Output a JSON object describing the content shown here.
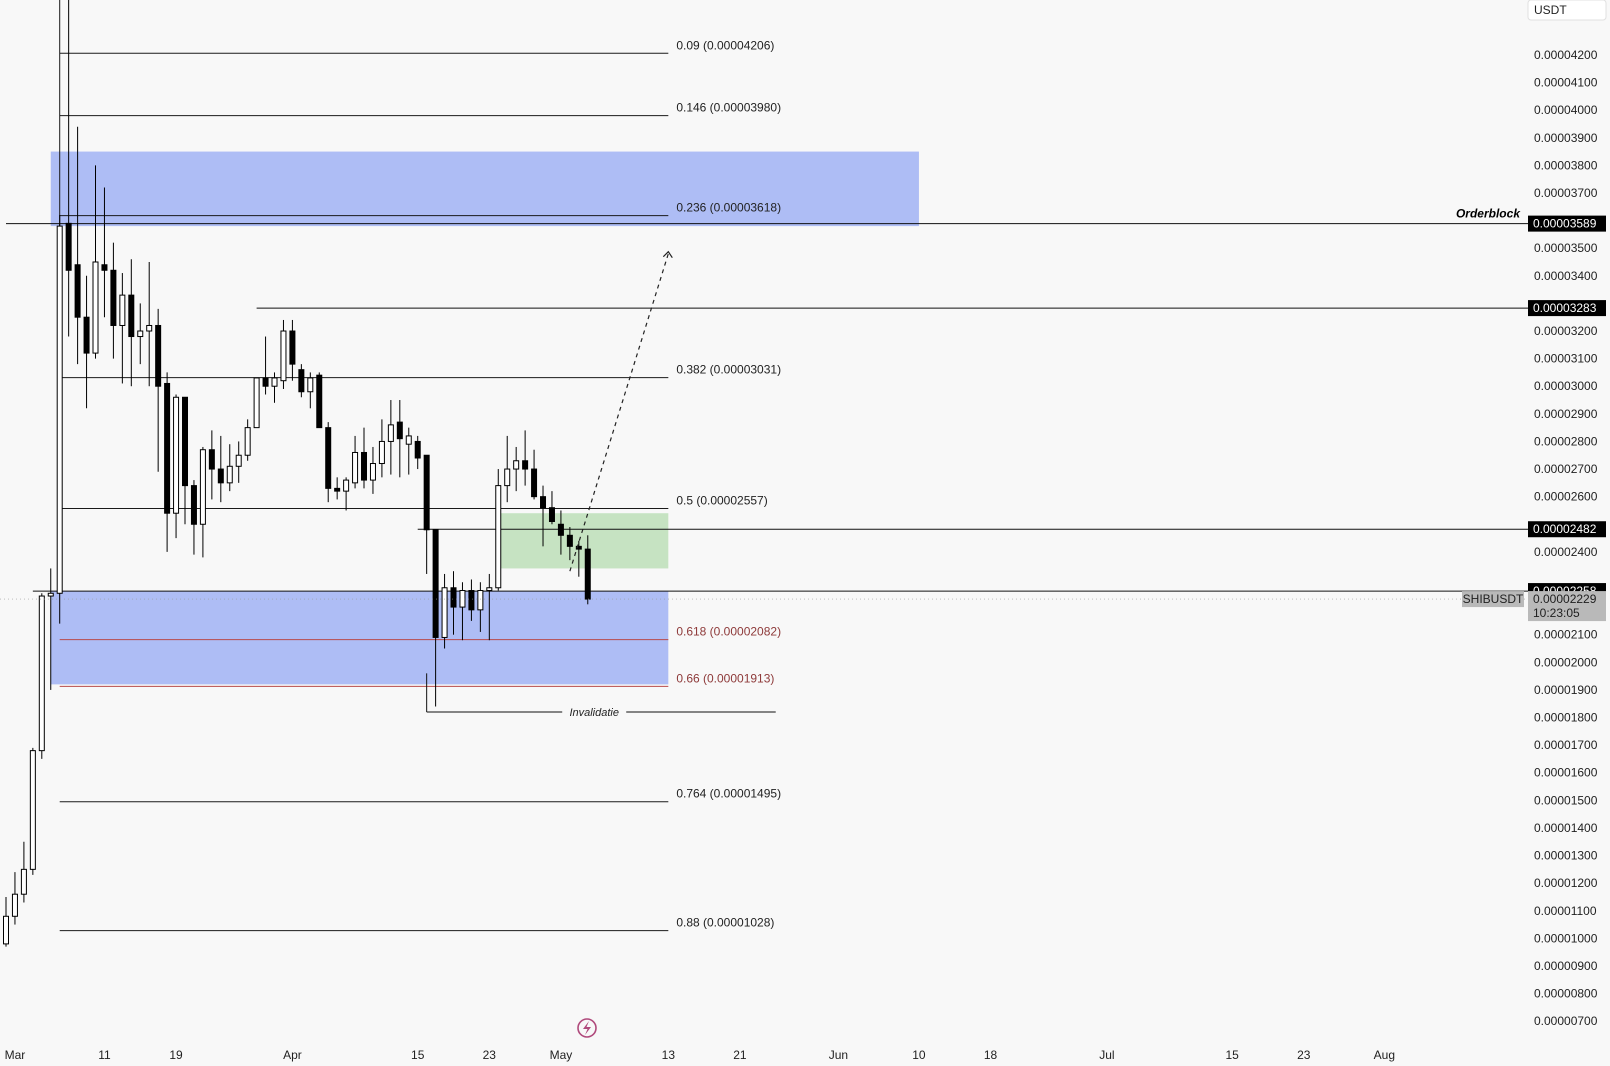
{
  "colors": {
    "background": "#f8f8f8",
    "blue_zone": "#aebdf5",
    "green_zone": "#c6e3c2",
    "candle_up": "#ffffff",
    "candle_down": "#000000",
    "fib_line": "#1a1a1a",
    "fib_red": "#b84a4a",
    "label_dark": "#000000",
    "label_grey": "#b9b9b9",
    "icon": "#b04a7c"
  },
  "chart_data": {
    "type": "candlestick",
    "symbol": "SHIBUSDT",
    "currency": "USDT",
    "y_range": [
      6.5e-06,
      4.37e-05
    ],
    "x_range": [
      "2024-02-29",
      "2024-08-08"
    ],
    "y_ticks": [
      "0.00004200",
      "0.00004100",
      "0.00004000",
      "0.00003900",
      "0.00003800",
      "0.00003700",
      "0.00003500",
      "0.00003400",
      "0.00003200",
      "0.00003100",
      "0.00003000",
      "0.00002900",
      "0.00002800",
      "0.00002700",
      "0.00002600",
      "0.00002400",
      "0.00002100",
      "0.00002000",
      "0.00001900",
      "0.00001800",
      "0.00001700",
      "0.00001600",
      "0.00001500",
      "0.00001400",
      "0.00001300",
      "0.00001200",
      "0.00001100",
      "0.00001000",
      "0.00000900",
      "0.00000800",
      "0.00000700"
    ],
    "x_ticks": [
      {
        "date": "2024-03-01",
        "label": "Mar"
      },
      {
        "date": "2024-03-11",
        "label": "11"
      },
      {
        "date": "2024-03-19",
        "label": "19"
      },
      {
        "date": "2024-04-01",
        "label": "Apr"
      },
      {
        "date": "2024-04-15",
        "label": "15"
      },
      {
        "date": "2024-04-23",
        "label": "23"
      },
      {
        "date": "2024-05-01",
        "label": "May"
      },
      {
        "date": "2024-05-13",
        "label": "13"
      },
      {
        "date": "2024-05-21",
        "label": "21"
      },
      {
        "date": "2024-06-01",
        "label": "Jun"
      },
      {
        "date": "2024-06-10",
        "label": "10"
      },
      {
        "date": "2024-06-18",
        "label": "18"
      },
      {
        "date": "2024-07-01",
        "label": "Jul"
      },
      {
        "date": "2024-07-15",
        "label": "15"
      },
      {
        "date": "2024-07-23",
        "label": "23"
      },
      {
        "date": "2024-08-01",
        "label": "Aug"
      }
    ],
    "candles": [
      {
        "date": "2024-02-29",
        "o": 9.8e-06,
        "h": 1.15e-05,
        "l": 9.7e-06,
        "c": 1.08e-05
      },
      {
        "date": "2024-03-01",
        "o": 1.08e-05,
        "h": 1.24e-05,
        "l": 1.05e-05,
        "c": 1.16e-05
      },
      {
        "date": "2024-03-02",
        "o": 1.16e-05,
        "h": 1.35e-05,
        "l": 1.13e-05,
        "c": 1.25e-05
      },
      {
        "date": "2024-03-03",
        "o": 1.25e-05,
        "h": 1.69e-05,
        "l": 1.23e-05,
        "c": 1.68e-05
      },
      {
        "date": "2024-03-04",
        "o": 1.68e-05,
        "h": 2.25e-05,
        "l": 1.65e-05,
        "c": 2.24e-05
      },
      {
        "date": "2024-03-05",
        "o": 2.24e-05,
        "h": 2.34e-05,
        "l": 1.9e-05,
        "c": 2.25e-05
      },
      {
        "date": "2024-03-06",
        "o": 2.25e-05,
        "h": 3.62e-05,
        "l": 2.14e-05,
        "c": 3.58e-05
      },
      {
        "date": "2024-03-07",
        "o": 3.59e-05,
        "h": 4.52e-05,
        "l": 3.18e-05,
        "c": 3.42e-05
      },
      {
        "date": "2024-03-08",
        "o": 3.44e-05,
        "h": 3.94e-05,
        "l": 3.08e-05,
        "c": 3.25e-05
      },
      {
        "date": "2024-03-09",
        "o": 3.25e-05,
        "h": 3.4e-05,
        "l": 2.92e-05,
        "c": 3.12e-05
      },
      {
        "date": "2024-03-10",
        "o": 3.12e-05,
        "h": 3.8e-05,
        "l": 3.1e-05,
        "c": 3.45e-05
      },
      {
        "date": "2024-03-11",
        "o": 3.44e-05,
        "h": 3.72e-05,
        "l": 3.25e-05,
        "c": 3.42e-05
      },
      {
        "date": "2024-03-12",
        "o": 3.42e-05,
        "h": 3.52e-05,
        "l": 3.1e-05,
        "c": 3.22e-05
      },
      {
        "date": "2024-03-13",
        "o": 3.22e-05,
        "h": 3.41e-05,
        "l": 3.01e-05,
        "c": 3.33e-05
      },
      {
        "date": "2024-03-14",
        "o": 3.33e-05,
        "h": 3.46e-05,
        "l": 3e-05,
        "c": 3.18e-05
      },
      {
        "date": "2024-03-15",
        "o": 3.18e-05,
        "h": 3.3e-05,
        "l": 3.08e-05,
        "c": 3.2e-05
      },
      {
        "date": "2024-03-16",
        "o": 3.2e-05,
        "h": 3.45e-05,
        "l": 3e-05,
        "c": 3.22e-05
      },
      {
        "date": "2024-03-17",
        "o": 3.22e-05,
        "h": 3.28e-05,
        "l": 2.69e-05,
        "c": 3e-05
      },
      {
        "date": "2024-03-18",
        "o": 3.01e-05,
        "h": 3.05e-05,
        "l": 2.4e-05,
        "c": 2.54e-05
      },
      {
        "date": "2024-03-19",
        "o": 2.54e-05,
        "h": 2.97e-05,
        "l": 2.45e-05,
        "c": 2.96e-05
      },
      {
        "date": "2024-03-20",
        "o": 2.96e-05,
        "h": 2.96e-05,
        "l": 2.5e-05,
        "c": 2.64e-05
      },
      {
        "date": "2024-03-21",
        "o": 2.64e-05,
        "h": 2.66e-05,
        "l": 2.39e-05,
        "c": 2.5e-05
      },
      {
        "date": "2024-03-22",
        "o": 2.5e-05,
        "h": 2.78e-05,
        "l": 2.38e-05,
        "c": 2.77e-05
      },
      {
        "date": "2024-03-23",
        "o": 2.77e-05,
        "h": 2.84e-05,
        "l": 2.59e-05,
        "c": 2.7e-05
      },
      {
        "date": "2024-03-24",
        "o": 2.7e-05,
        "h": 2.82e-05,
        "l": 2.58e-05,
        "c": 2.65e-05
      },
      {
        "date": "2024-03-25",
        "o": 2.65e-05,
        "h": 2.79e-05,
        "l": 2.62e-05,
        "c": 2.71e-05
      },
      {
        "date": "2024-03-26",
        "o": 2.71e-05,
        "h": 2.8e-05,
        "l": 2.65e-05,
        "c": 2.75e-05
      },
      {
        "date": "2024-03-27",
        "o": 2.75e-05,
        "h": 2.88e-05,
        "l": 2.73e-05,
        "c": 2.85e-05
      },
      {
        "date": "2024-03-28",
        "o": 2.85e-05,
        "h": 3.03e-05,
        "l": 2.85e-05,
        "c": 3.03e-05
      },
      {
        "date": "2024-03-29",
        "o": 3.03e-05,
        "h": 3.18e-05,
        "l": 2.97e-05,
        "c": 3e-05
      },
      {
        "date": "2024-03-30",
        "o": 3e-05,
        "h": 3.05e-05,
        "l": 2.94e-05,
        "c": 3.03e-05
      },
      {
        "date": "2024-03-31",
        "o": 3.02e-05,
        "h": 3.24e-05,
        "l": 2.99e-05,
        "c": 3.2e-05
      },
      {
        "date": "2024-04-01",
        "o": 3.2e-05,
        "h": 3.24e-05,
        "l": 3.02e-05,
        "c": 3.08e-05
      },
      {
        "date": "2024-04-02",
        "o": 3.06e-05,
        "h": 3.08e-05,
        "l": 2.96e-05,
        "c": 2.98e-05
      },
      {
        "date": "2024-04-03",
        "o": 2.98e-05,
        "h": 3.05e-05,
        "l": 2.92e-05,
        "c": 3.03e-05
      },
      {
        "date": "2024-04-04",
        "o": 3.04e-05,
        "h": 3.05e-05,
        "l": 2.86e-05,
        "c": 2.85e-05
      },
      {
        "date": "2024-04-05",
        "o": 2.85e-05,
        "h": 2.87e-05,
        "l": 2.58e-05,
        "c": 2.63e-05
      },
      {
        "date": "2024-04-06",
        "o": 2.63e-05,
        "h": 2.67e-05,
        "l": 2.59e-05,
        "c": 2.62e-05
      },
      {
        "date": "2024-04-07",
        "o": 2.62e-05,
        "h": 2.67e-05,
        "l": 2.55e-05,
        "c": 2.66e-05
      },
      {
        "date": "2024-04-08",
        "o": 2.65e-05,
        "h": 2.82e-05,
        "l": 2.63e-05,
        "c": 2.76e-05
      },
      {
        "date": "2024-04-09",
        "o": 2.76e-05,
        "h": 2.85e-05,
        "l": 2.63e-05,
        "c": 2.66e-05
      },
      {
        "date": "2024-04-10",
        "o": 2.66e-05,
        "h": 2.78e-05,
        "l": 2.61e-05,
        "c": 2.72e-05
      },
      {
        "date": "2024-04-11",
        "o": 2.72e-05,
        "h": 2.88e-05,
        "l": 2.67e-05,
        "c": 2.8e-05
      },
      {
        "date": "2024-04-12",
        "o": 2.8e-05,
        "h": 2.95e-05,
        "l": 2.68e-05,
        "c": 2.86e-05
      },
      {
        "date": "2024-04-13",
        "o": 2.87e-05,
        "h": 2.95e-05,
        "l": 2.67e-05,
        "c": 2.81e-05
      },
      {
        "date": "2024-04-14",
        "o": 2.79e-05,
        "h": 2.85e-05,
        "l": 2.68e-05,
        "c": 2.82e-05
      },
      {
        "date": "2024-04-15",
        "o": 2.8e-05,
        "h": 2.82e-05,
        "l": 2.7e-05,
        "c": 2.74e-05
      },
      {
        "date": "2024-04-16",
        "o": 2.75e-05,
        "h": 2.75e-05,
        "l": 2.32e-05,
        "c": 2.48e-05
      },
      {
        "date": "2024-04-17",
        "o": 2.48e-05,
        "h": 2.48e-05,
        "l": 1.84e-05,
        "c": 2.09e-05
      },
      {
        "date": "2024-04-18",
        "o": 2.09e-05,
        "h": 2.32e-05,
        "l": 2.05e-05,
        "c": 2.27e-05
      },
      {
        "date": "2024-04-19",
        "o": 2.27e-05,
        "h": 2.33e-05,
        "l": 2.1e-05,
        "c": 2.2e-05
      },
      {
        "date": "2024-04-20",
        "o": 2.2e-05,
        "h": 2.29e-05,
        "l": 2.08e-05,
        "c": 2.26e-05
      },
      {
        "date": "2024-04-21",
        "o": 2.26e-05,
        "h": 2.3e-05,
        "l": 2.15e-05,
        "c": 2.19e-05
      },
      {
        "date": "2024-04-22",
        "o": 2.19e-05,
        "h": 2.29e-05,
        "l": 2.11e-05,
        "c": 2.26e-05
      },
      {
        "date": "2024-04-23",
        "o": 2.26e-05,
        "h": 2.32e-05,
        "l": 2.08e-05,
        "c": 2.27e-05
      },
      {
        "date": "2024-04-24",
        "o": 2.27e-05,
        "h": 2.7e-05,
        "l": 2.26e-05,
        "c": 2.64e-05
      },
      {
        "date": "2024-04-25",
        "o": 2.64e-05,
        "h": 2.82e-05,
        "l": 2.58e-05,
        "c": 2.7e-05
      },
      {
        "date": "2024-04-26",
        "o": 2.7e-05,
        "h": 2.78e-05,
        "l": 2.62e-05,
        "c": 2.73e-05
      },
      {
        "date": "2024-04-27",
        "o": 2.73e-05,
        "h": 2.84e-05,
        "l": 2.64e-05,
        "c": 2.7e-05
      },
      {
        "date": "2024-04-28",
        "o": 2.7e-05,
        "h": 2.77e-05,
        "l": 2.59e-05,
        "c": 2.6e-05
      },
      {
        "date": "2024-04-29",
        "o": 2.6e-05,
        "h": 2.64e-05,
        "l": 2.42e-05,
        "c": 2.56e-05
      },
      {
        "date": "2024-04-30",
        "o": 2.56e-05,
        "h": 2.62e-05,
        "l": 2.5e-05,
        "c": 2.51e-05
      },
      {
        "date": "2024-05-01",
        "o": 2.5e-05,
        "h": 2.55e-05,
        "l": 2.39e-05,
        "c": 2.46e-05
      },
      {
        "date": "2024-05-02",
        "o": 2.46e-05,
        "h": 2.49e-05,
        "l": 2.37e-05,
        "c": 2.42e-05
      },
      {
        "date": "2024-05-03",
        "o": 2.42e-05,
        "h": 2.44e-05,
        "l": 2.31e-05,
        "c": 2.41e-05
      },
      {
        "date": "2024-05-04",
        "o": 2.41e-05,
        "h": 2.46e-05,
        "l": 2.21e-05,
        "c": 2.229e-05
      }
    ],
    "fib_levels": [
      {
        "label": "0.09 (0.00004206)",
        "price": 4.206e-05,
        "red": false
      },
      {
        "label": "0.146 (0.00003980)",
        "price": 3.98e-05,
        "red": false
      },
      {
        "label": "0.236 (0.00003618)",
        "price": 3.618e-05,
        "red": false
      },
      {
        "label": "0.382 (0.00003031)",
        "price": 3.031e-05,
        "red": false
      },
      {
        "label": "0.5 (0.00002557)",
        "price": 2.557e-05,
        "red": false
      },
      {
        "label": "0.618 (0.00002082)",
        "price": 2.082e-05,
        "red": true
      },
      {
        "label": "0.66 (0.00001913)",
        "price": 1.913e-05,
        "red": true
      },
      {
        "label": "0.764 (0.00001495)",
        "price": 1.495e-05,
        "red": false
      },
      {
        "label": "0.88 (0.00001028)",
        "price": 1.028e-05,
        "red": false
      }
    ],
    "zones": [
      {
        "kind": "blue",
        "top": 3.85e-05,
        "bottom": 3.58e-05,
        "from": "2024-03-05",
        "to": "2024-06-10"
      },
      {
        "kind": "blue",
        "top": 2.258e-05,
        "bottom": 1.92e-05,
        "from": "2024-03-05",
        "to": "2024-05-13"
      },
      {
        "kind": "green",
        "top": 2.54e-05,
        "bottom": 2.34e-05,
        "from": "2024-04-24",
        "to": "2024-05-13"
      }
    ],
    "horizontal_lines": [
      {
        "price": 3.589e-05,
        "from": "2024-02-29",
        "label": "0.00003589",
        "note": "Orderblock"
      },
      {
        "price": 3.283e-05,
        "from": "2024-03-28",
        "label": "0.00003283",
        "note": ""
      },
      {
        "price": 2.482e-05,
        "from": "2024-04-15",
        "label": "0.00002482",
        "note": ""
      },
      {
        "price": 2.258e-05,
        "from": "2024-03-03",
        "label": "0.00002258",
        "note": ""
      }
    ],
    "invalidation": {
      "price": 1.82e-05,
      "from": "2024-04-16",
      "to": "2024-05-25",
      "label": "Invalidatie"
    },
    "projection": {
      "from_date": "2024-05-02",
      "from_price": 2.33e-05,
      "to_date": "2024-05-13",
      "to_price": 3.48e-05
    },
    "current_price": {
      "symbol_label": "SHIBUSDT",
      "price": "0.00002229",
      "countdown": "10:23:05"
    }
  }
}
